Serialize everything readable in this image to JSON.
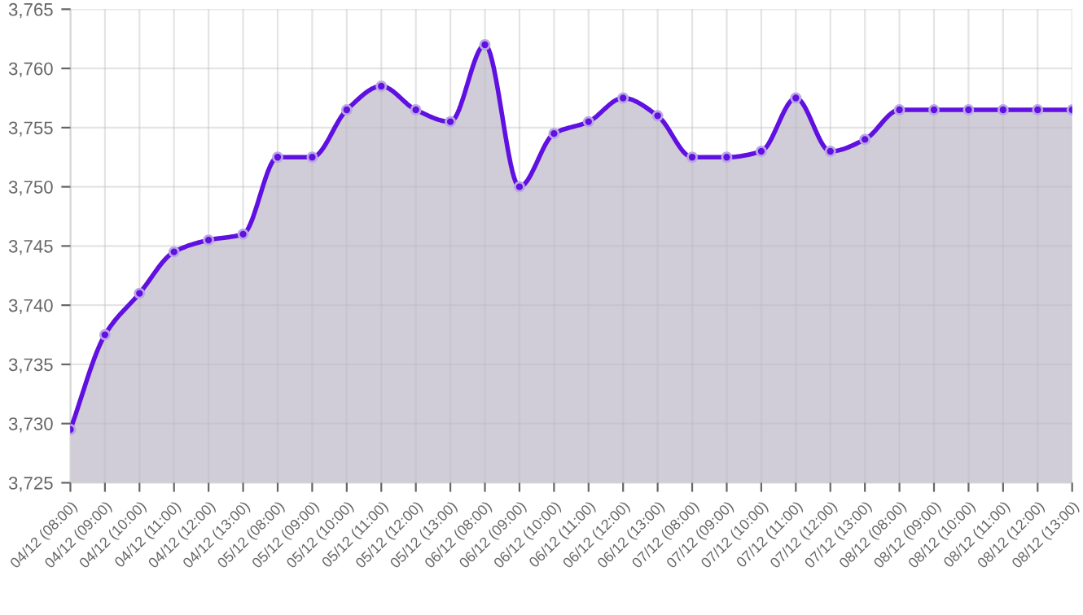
{
  "chart_data": {
    "type": "area",
    "categories": [
      "04/12 (08:00)",
      "04/12 (09:00)",
      "04/12 (10:00)",
      "04/12 (11:00)",
      "04/12 (12:00)",
      "04/12 (13:00)",
      "05/12 (08:00)",
      "05/12 (09:00)",
      "05/12 (10:00)",
      "05/12 (11:00)",
      "05/12 (12:00)",
      "05/12 (13:00)",
      "06/12 (08:00)",
      "06/12 (09:00)",
      "06/12 (10:00)",
      "06/12 (11:00)",
      "06/12 (12:00)",
      "06/12 (13:00)",
      "07/12 (08:00)",
      "07/12 (09:00)",
      "07/12 (10:00)",
      "07/12 (11:00)",
      "07/12 (12:00)",
      "07/12 (13:00)",
      "08/12 (08:00)",
      "08/12 (09:00)",
      "08/12 (10:00)",
      "08/12 (11:00)",
      "08/12 (12:00)",
      "08/12 (13:00)"
    ],
    "series": [
      {
        "color": "#6010e0",
        "values": [
          3729.5,
          3737.5,
          3741,
          3744.5,
          3745.5,
          3746,
          3752.5,
          3752.5,
          3756.5,
          3758.5,
          3756.5,
          3755.5,
          3762,
          3750,
          3754.5,
          3755.5,
          3757.5,
          3756,
          3752.5,
          3752.5,
          3753,
          3757.5,
          3753,
          3754,
          3756.5,
          3756.5,
          3756.5,
          3756.5,
          3756.5,
          3756.5
        ]
      }
    ],
    "ylim": [
      3725,
      3765
    ],
    "yticks": [
      {
        "value": 3725,
        "label": "3,725"
      },
      {
        "value": 3730,
        "label": "3,730"
      },
      {
        "value": 3735,
        "label": "3,735"
      },
      {
        "value": 3740,
        "label": "3,740"
      },
      {
        "value": 3745,
        "label": "3,745"
      },
      {
        "value": 3750,
        "label": "3,750"
      },
      {
        "value": 3755,
        "label": "3,755"
      },
      {
        "value": 3760,
        "label": "3,760"
      },
      {
        "value": 3765,
        "label": "3,765"
      }
    ],
    "grid": true,
    "marker": "circle",
    "line_style": "solid"
  }
}
